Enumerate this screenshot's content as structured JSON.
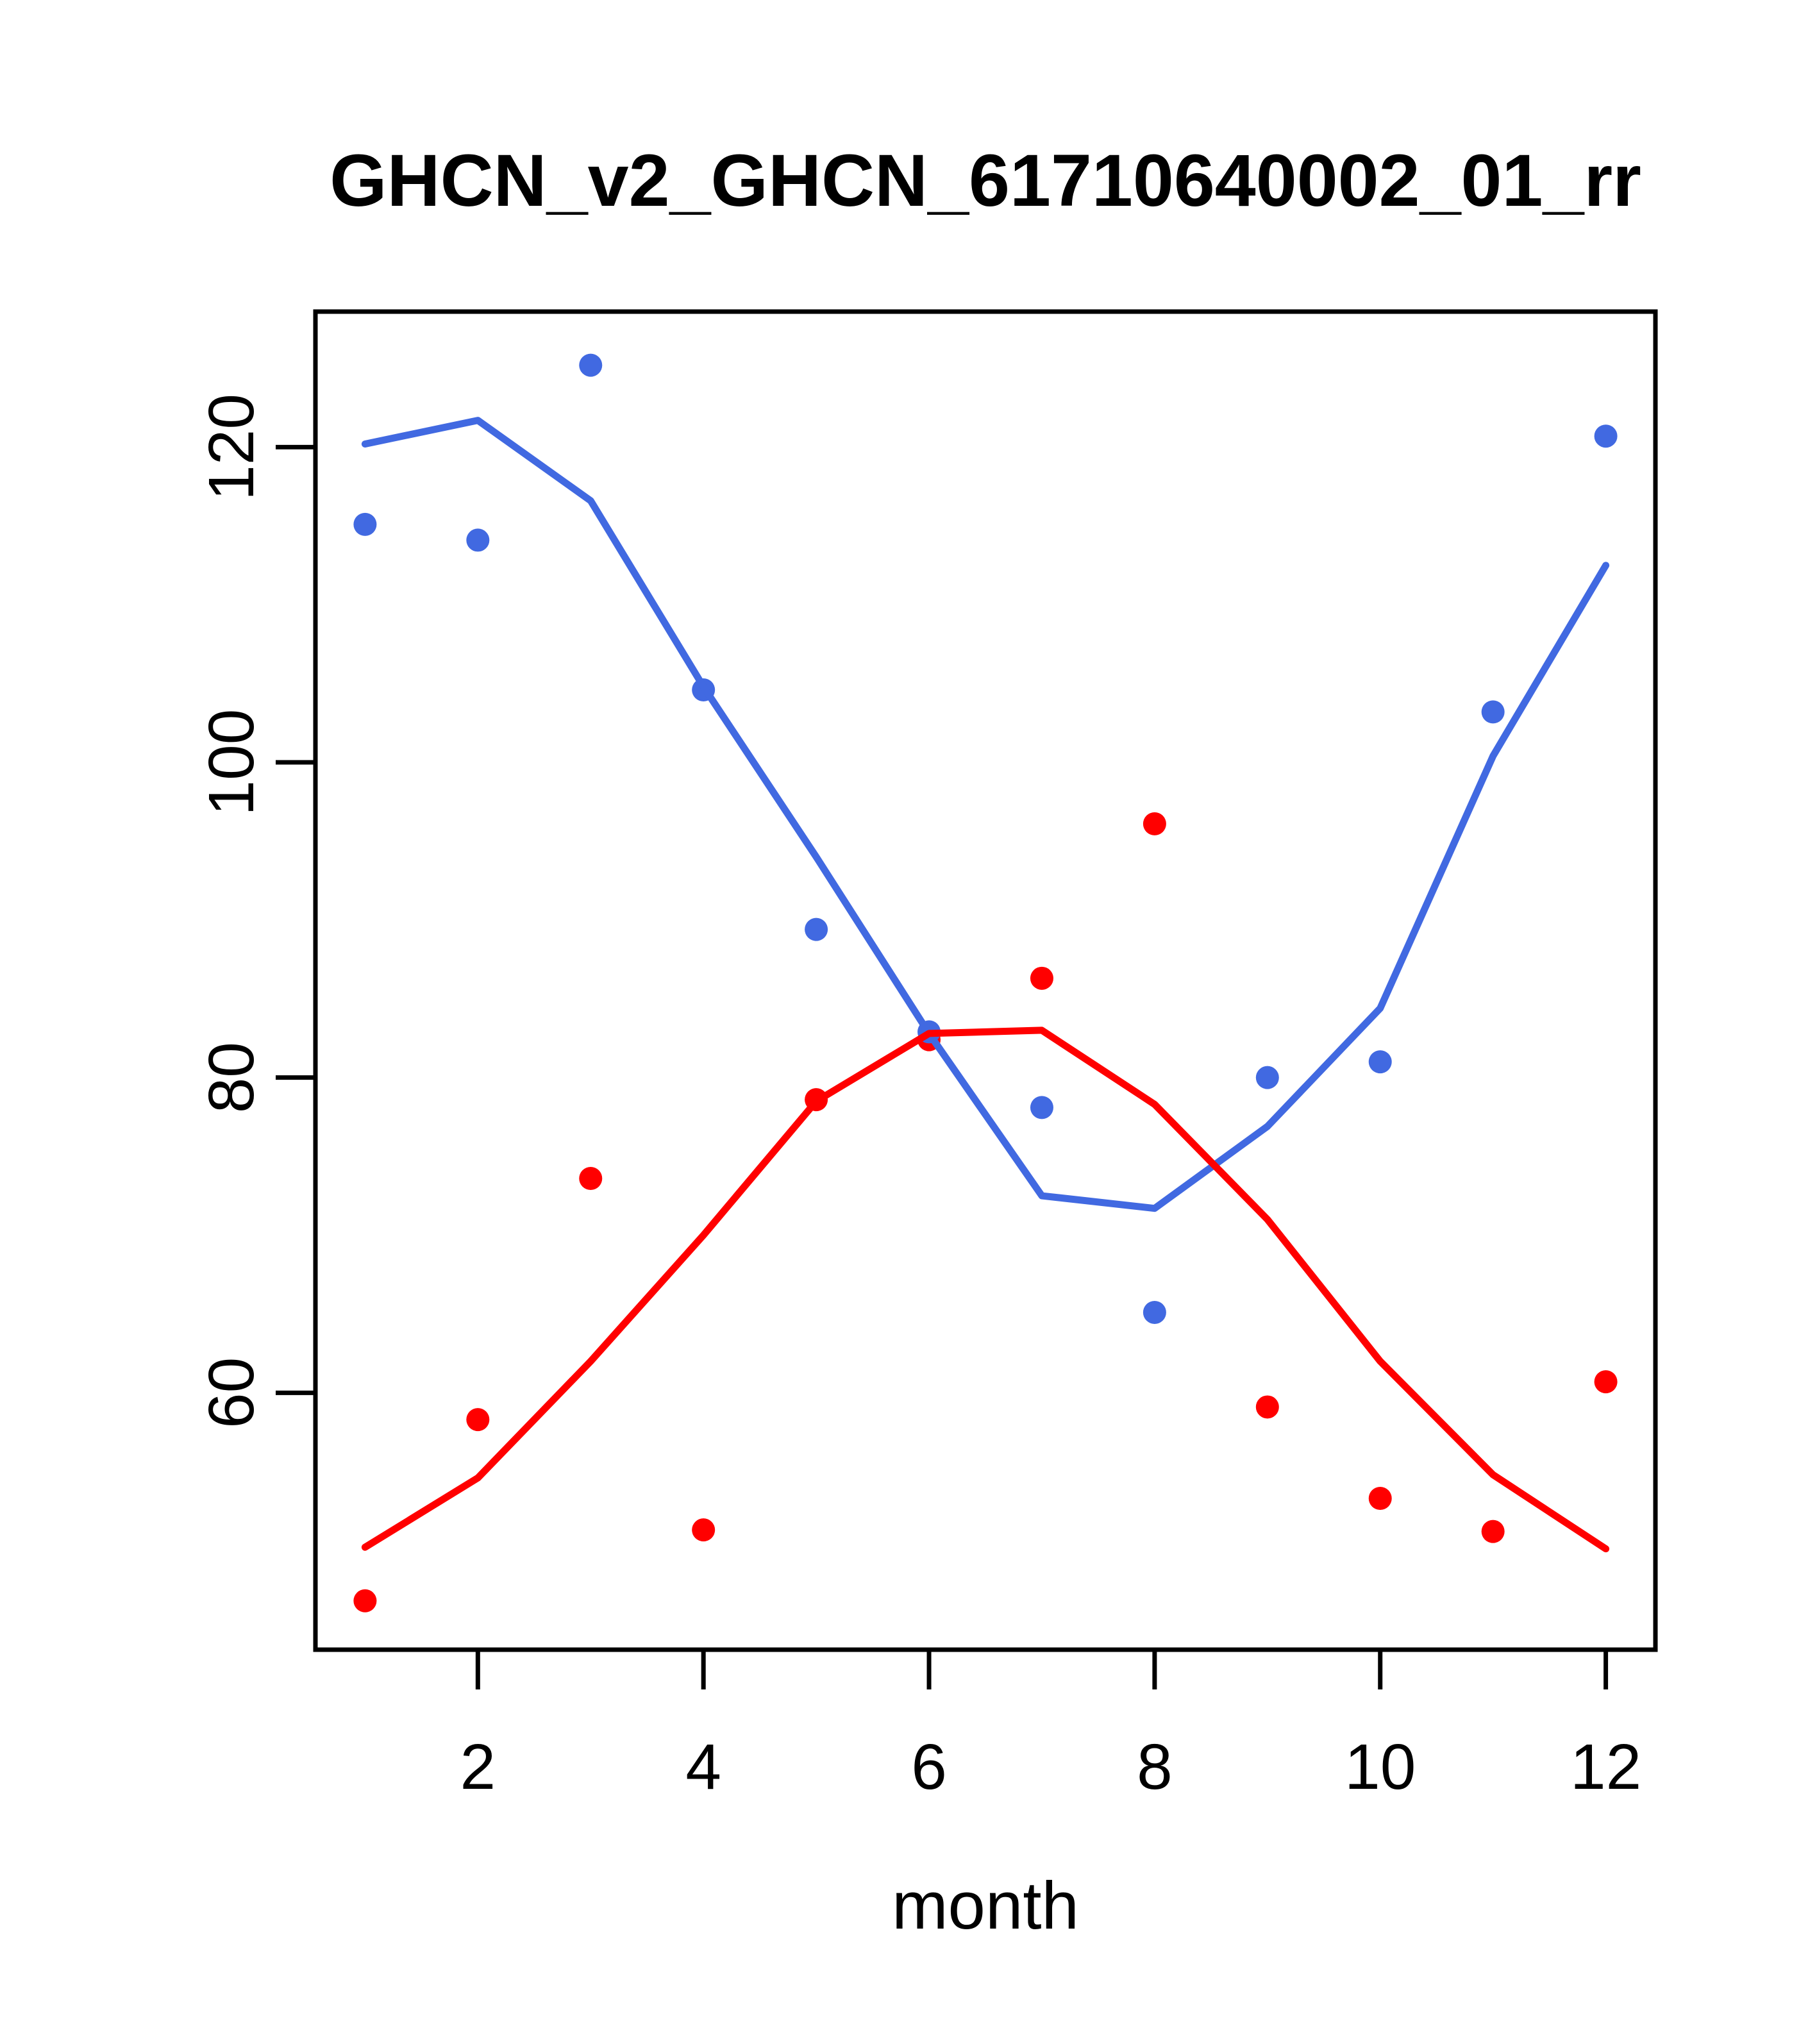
{
  "window": {
    "background_color": "#FFFFFF",
    "axis_color": "#000000"
  },
  "chart_data": {
    "type": "scatter",
    "title": "GHCN_v2_GHCN_61710640002_01_rr",
    "xlabel": "month",
    "ylabel": "",
    "grid": false,
    "legend": "none",
    "x": [
      1,
      2,
      3,
      4,
      5,
      6,
      7,
      8,
      9,
      10,
      11,
      12
    ],
    "x_ticks": [
      2,
      4,
      6,
      8,
      10,
      12
    ],
    "y_ticks": [
      60,
      80,
      100,
      120
    ],
    "xlim": [
      0.56,
      12.44
    ],
    "ylim": [
      43.7,
      128.6
    ],
    "series": [
      {
        "name": "red-observations",
        "kind": "points",
        "color": "#FF0000",
        "marker": "circle",
        "values": [
          46.8,
          58.3,
          73.6,
          51.3,
          78.6,
          82.4,
          86.3,
          96.1,
          59.1,
          53.3,
          51.2,
          60.7
        ]
      },
      {
        "name": "blue-observations",
        "kind": "points",
        "color": "#4169E1",
        "marker": "circle",
        "values": [
          115.1,
          114.1,
          125.2,
          104.6,
          89.4,
          82.9,
          78.1,
          65.1,
          80.0,
          81.0,
          103.2,
          120.7
        ]
      },
      {
        "name": "blue-smooth-line",
        "kind": "line",
        "color": "#4169E1",
        "values": [
          120.2,
          121.7,
          116.6,
          104.8,
          94.0,
          82.8,
          72.5,
          71.7,
          76.9,
          84.4,
          100.4,
          112.5
        ]
      },
      {
        "name": "red-smooth-line",
        "kind": "line",
        "color": "#FF0000",
        "values": [
          50.2,
          54.6,
          62.0,
          70.0,
          78.5,
          82.8,
          83.0,
          78.3,
          71.0,
          62.0,
          54.8,
          50.1
        ]
      }
    ]
  }
}
